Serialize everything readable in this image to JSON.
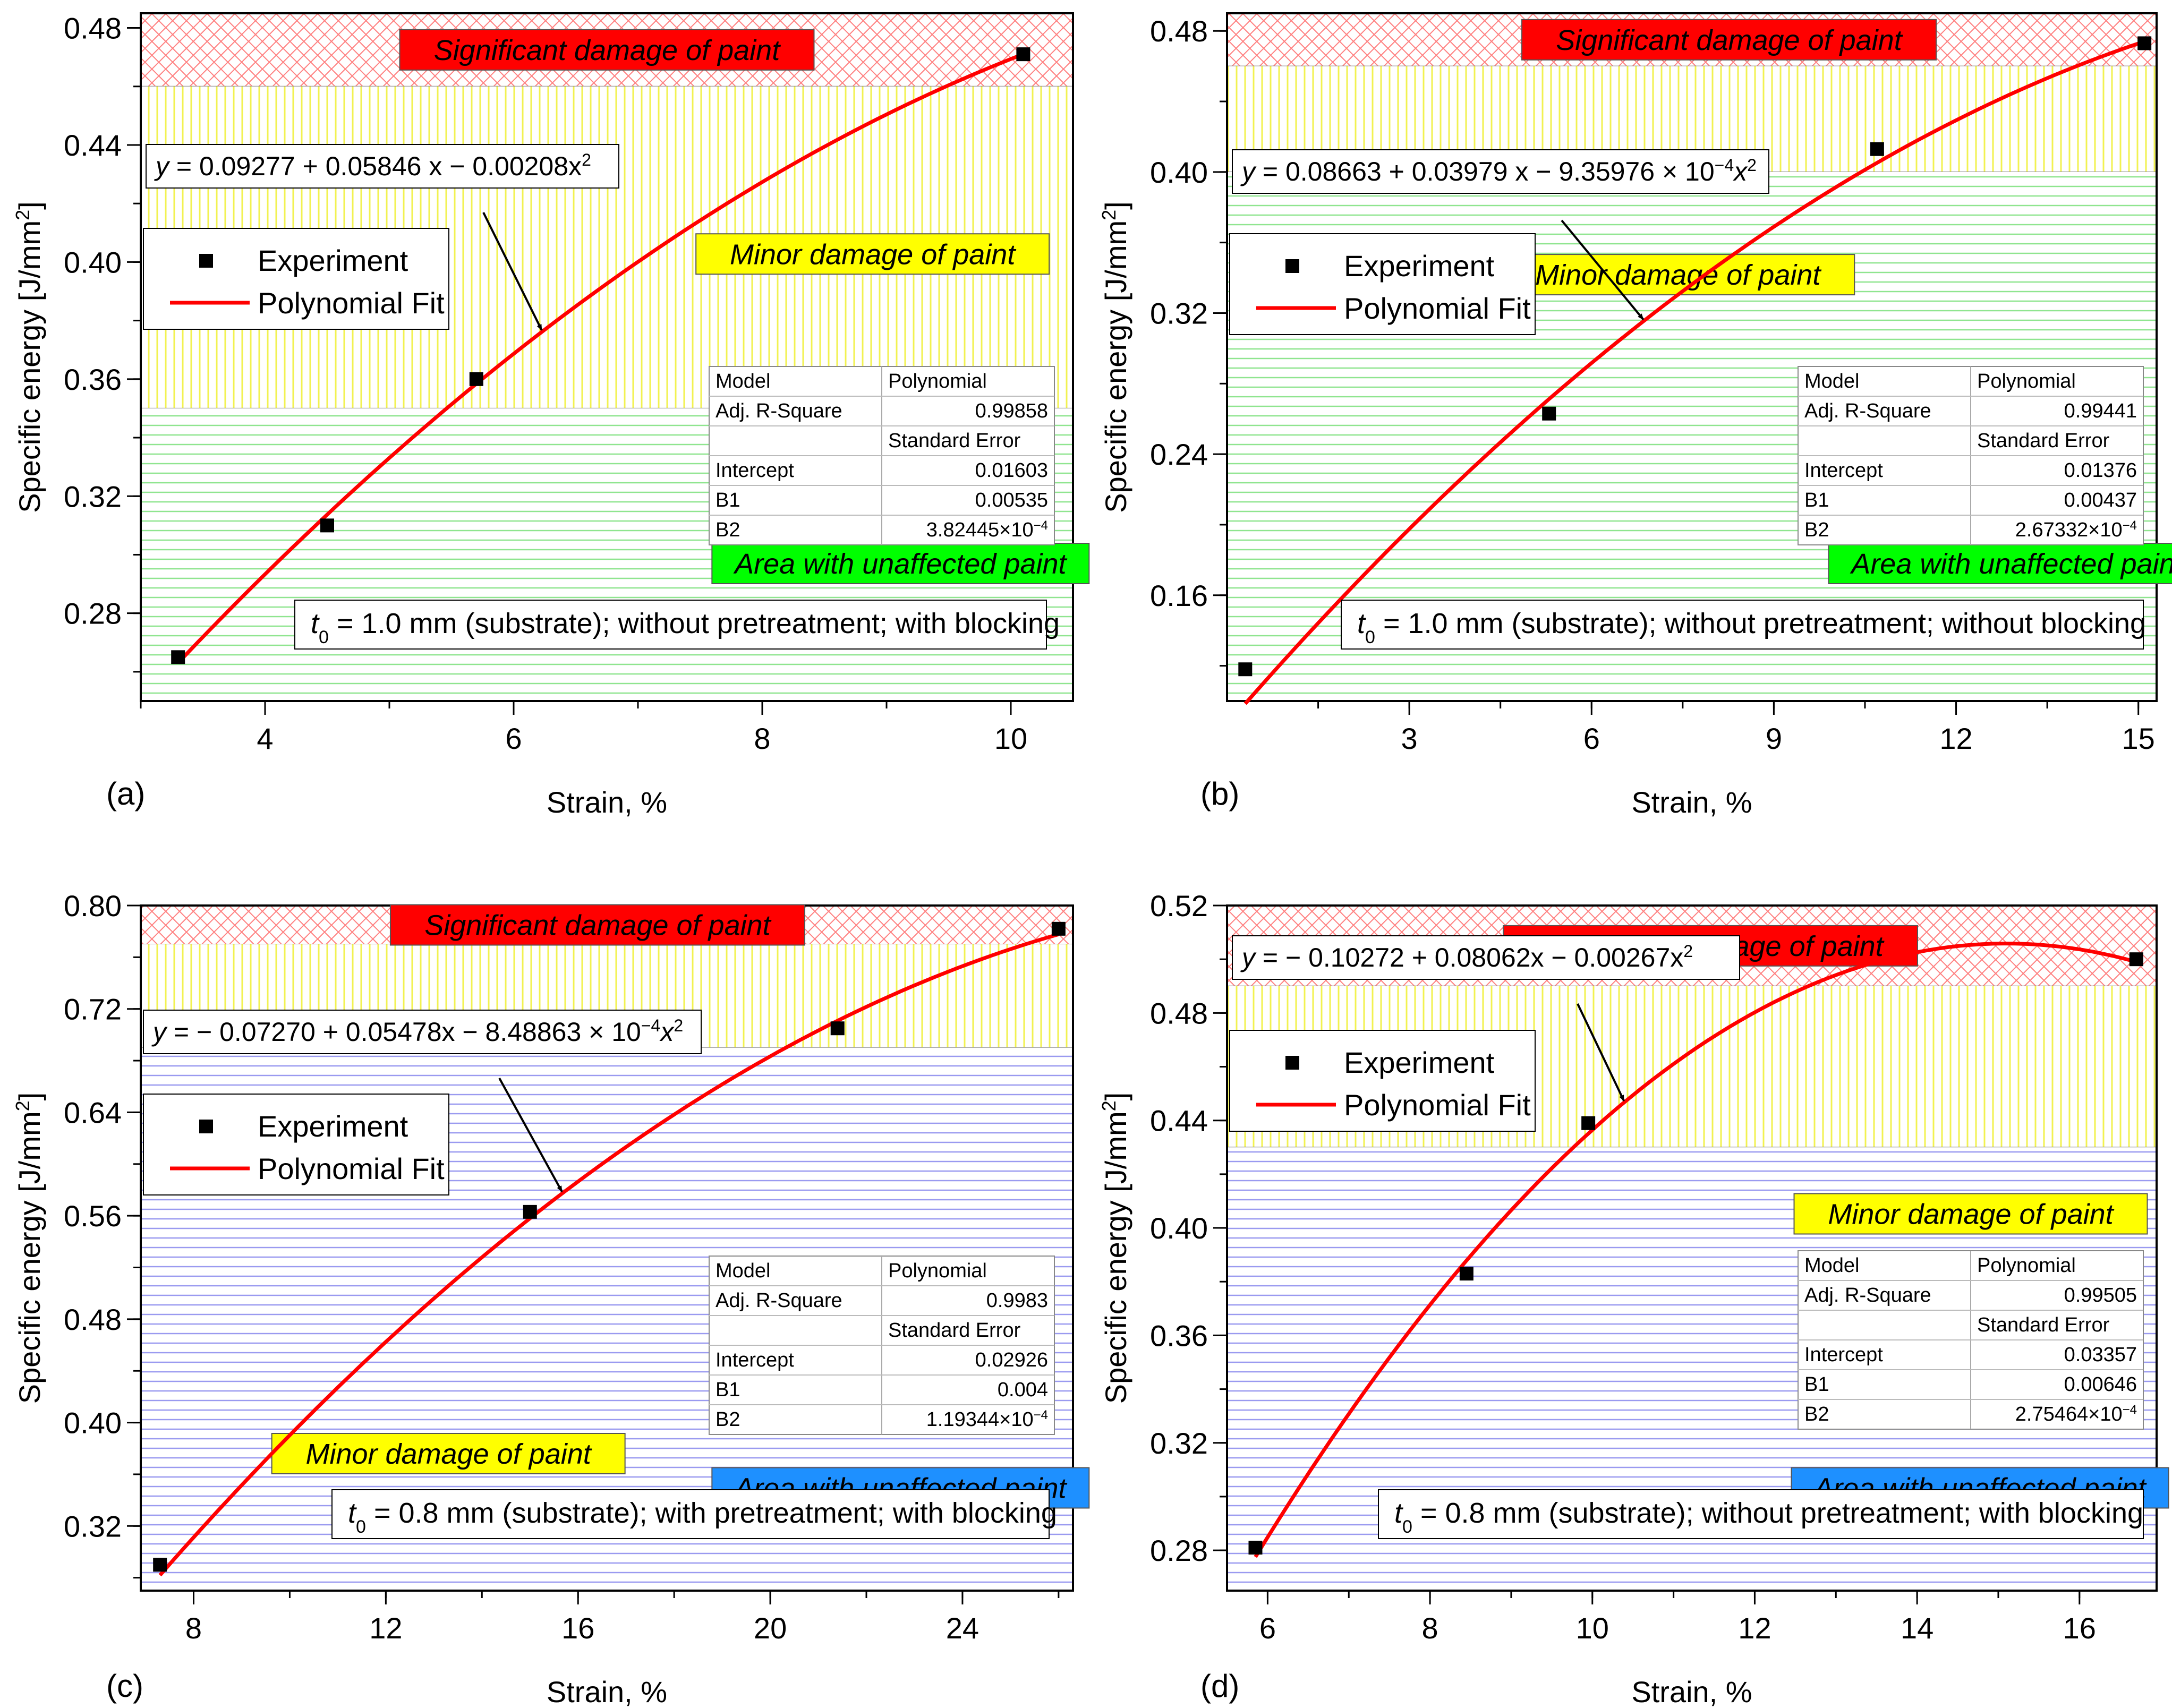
{
  "colors": {
    "significant": "#ff0000",
    "minor": "#ffff00",
    "unaffected_green": "#00ff00",
    "unaffected_blue": "#1e90ff",
    "fit": "#ff0000",
    "marker": "#000000"
  },
  "legend": {
    "experiment": "Experiment",
    "fit": "Polynomial Fit"
  },
  "chart_data": [
    {
      "type": "scatter",
      "panel": "(a)",
      "xlabel": "Strain, %",
      "ylabel": "Specific energy [J/mm²]",
      "ylabel_main": "Specific energy [J/mm",
      "ylabel_sup": "2",
      "ylabel_end": "]",
      "xlim": [
        3.0,
        10.5
      ],
      "ylim": [
        0.25,
        0.485
      ],
      "xticks": [
        4,
        6,
        8,
        10
      ],
      "xtick_labels": [
        "4",
        "6",
        "8",
        "10"
      ],
      "yticks": [
        0.28,
        0.32,
        0.36,
        0.4,
        0.44,
        0.48
      ],
      "ytick_labels": [
        "0.28",
        "0.32",
        "0.36",
        "0.40",
        "0.44",
        "0.48"
      ],
      "zones": [
        {
          "from": 0.46,
          "to": 0.485,
          "type": "significant"
        },
        {
          "from": 0.35,
          "to": 0.46,
          "type": "minor"
        },
        {
          "from": 0.25,
          "to": 0.35,
          "type": "unaffected",
          "color": "green"
        }
      ],
      "zone_labels": {
        "significant": "Significant damage of paint",
        "minor": "Minor damage of paint",
        "unaffected": "Area with unaffected paint"
      },
      "experiment": {
        "x": [
          3.3,
          4.5,
          5.7,
          10.1
        ],
        "y": [
          0.265,
          0.31,
          0.36,
          0.471
        ]
      },
      "fit": {
        "coef": [
          0.09277,
          0.05846,
          -0.00208
        ],
        "xrange": [
          3.3,
          10.1
        ]
      },
      "equation": {
        "lead": "y",
        "body": " = 0.09277 + 0.05846 x − 0.00208x",
        "sup": "2"
      },
      "table": {
        "model_label": "Model",
        "model_value": "Polynomial",
        "r2_label": "Adj. R-Square",
        "r2_value": "0.99858",
        "se_header": "Standard Error",
        "intercept_label": "Intercept",
        "intercept_value": "0.01603",
        "b1_label": "B1",
        "b1_value": "0.00535",
        "b2_label": "B2",
        "b2_value": "3.82445×10",
        "b2_exp": "−4"
      },
      "condition": {
        "t": "t",
        "sub": "0",
        "rest": " = 1.0 mm (substrate); without pretreatment; with blocking"
      }
    },
    {
      "type": "scatter",
      "panel": "(b)",
      "xlabel": "Strain, %",
      "ylabel": "Specific energy [J/mm²]",
      "ylabel_main": "Specific energy [J/mm",
      "ylabel_sup": "2",
      "ylabel_end": "]",
      "xlim": [
        0.0,
        15.3
      ],
      "ylim": [
        0.1,
        0.49
      ],
      "xticks": [
        3,
        6,
        9,
        12,
        15
      ],
      "xtick_labels": [
        "3",
        "6",
        "9",
        "12",
        "15"
      ],
      "yticks": [
        0.16,
        0.24,
        0.32,
        0.4,
        0.48
      ],
      "ytick_labels": [
        "0.16",
        "0.24",
        "0.32",
        "0.40",
        "0.48"
      ],
      "zones": [
        {
          "from": 0.46,
          "to": 0.49,
          "type": "significant"
        },
        {
          "from": 0.4,
          "to": 0.46,
          "type": "minor"
        },
        {
          "from": 0.1,
          "to": 0.4,
          "type": "unaffected",
          "color": "green"
        }
      ],
      "zone_labels": {
        "significant": "Significant damage of paint",
        "minor": "Minor damage of paint",
        "unaffected": "Area with unaffected paint"
      },
      "experiment": {
        "x": [
          0.3,
          5.3,
          10.7,
          15.1
        ],
        "y": [
          0.118,
          0.263,
          0.413,
          0.473
        ]
      },
      "fit": {
        "coef": [
          0.08663,
          0.03979,
          -0.000935976
        ],
        "xrange": [
          0.3,
          15.1
        ]
      },
      "equation": {
        "lead": "y",
        "body": " = 0.08663 + 0.03979 x − 9.35976 × 10",
        "exp": "−4",
        "tail": "x",
        "sup": "2"
      },
      "table": {
        "model_label": "Model",
        "model_value": "Polynomial",
        "r2_label": "Adj. R-Square",
        "r2_value": "0.99441",
        "se_header": "Standard Error",
        "intercept_label": "Intercept",
        "intercept_value": "0.01376",
        "b1_label": "B1",
        "b1_value": "0.00437",
        "b2_label": "B2",
        "b2_value": "2.67332×10",
        "b2_exp": "−4"
      },
      "condition": {
        "t": "t",
        "sub": "0",
        "rest": " = 1.0 mm (substrate); without pretreatment; without blocking"
      }
    },
    {
      "type": "scatter",
      "panel": "(c)",
      "xlabel": "Strain, %",
      "ylabel": "Specific energy [J/mm²]",
      "ylabel_main": "Specific energy [J/mm",
      "ylabel_sup": "2",
      "ylabel_end": "]",
      "xlim": [
        6.9,
        26.3
      ],
      "ylim": [
        0.27,
        0.8
      ],
      "xticks": [
        8,
        12,
        16,
        20,
        24
      ],
      "xtick_labels": [
        "8",
        "12",
        "16",
        "20",
        "24"
      ],
      "yticks": [
        0.32,
        0.4,
        0.48,
        0.56,
        0.64,
        0.72,
        0.8
      ],
      "ytick_labels": [
        "0.32",
        "0.40",
        "0.48",
        "0.56",
        "0.64",
        "0.72",
        "0.80"
      ],
      "zones": [
        {
          "from": 0.77,
          "to": 0.8,
          "type": "significant"
        },
        {
          "from": 0.69,
          "to": 0.77,
          "type": "minor"
        },
        {
          "from": 0.27,
          "to": 0.69,
          "type": "unaffected",
          "color": "blue"
        }
      ],
      "zone_labels": {
        "significant": "Significant damage of paint",
        "minor": "Minor damage of paint",
        "unaffected": "Area with unaffected paint"
      },
      "experiment": {
        "x": [
          7.3,
          15.0,
          21.4,
          26.0
        ],
        "y": [
          0.29,
          0.563,
          0.705,
          0.782
        ]
      },
      "fit": {
        "coef": [
          -0.0727,
          0.05478,
          -0.000848863
        ],
        "xrange": [
          7.3,
          26.0
        ]
      },
      "equation": {
        "lead": "y",
        "body": " = − 0.07270 + 0.05478x − 8.48863 × 10",
        "exp": "−4",
        "tail": "x",
        "sup": "2"
      },
      "table": {
        "model_label": "Model",
        "model_value": "Polynomial",
        "r2_label": "Adj. R-Square",
        "r2_value": "0.9983",
        "se_header": "Standard Error",
        "intercept_label": "Intercept",
        "intercept_value": "0.02926",
        "b1_label": "B1",
        "b1_value": "0.004",
        "b2_label": "B2",
        "b2_value": "1.19344×10",
        "b2_exp": "−4"
      },
      "condition": {
        "t": "t",
        "sub": "0",
        "rest": " = 0.8 mm (substrate); with pretreatment; with blocking"
      }
    },
    {
      "type": "scatter",
      "panel": "(d)",
      "xlabel": "Strain, %",
      "ylabel": "Specific energy [J/mm²]",
      "ylabel_main": "Specific energy [J/mm",
      "ylabel_sup": "2",
      "ylabel_end": "]",
      "xlim": [
        5.5,
        16.95
      ],
      "ylim": [
        0.265,
        0.52
      ],
      "xticks": [
        6,
        8,
        10,
        12,
        14,
        16
      ],
      "xtick_labels": [
        "6",
        "8",
        "10",
        "12",
        "14",
        "16"
      ],
      "yticks": [
        0.28,
        0.32,
        0.36,
        0.4,
        0.44,
        0.48,
        0.52
      ],
      "ytick_labels": [
        "0.28",
        "0.32",
        "0.36",
        "0.40",
        "0.44",
        "0.48",
        "0.52"
      ],
      "zones": [
        {
          "from": 0.49,
          "to": 0.52,
          "type": "significant"
        },
        {
          "from": 0.43,
          "to": 0.49,
          "type": "minor"
        },
        {
          "from": 0.265,
          "to": 0.43,
          "type": "unaffected",
          "color": "blue"
        }
      ],
      "zone_labels": {
        "significant": "Significant damage of paint",
        "minor": "Minor damage of paint",
        "unaffected": "Area with unaffected paint"
      },
      "experiment": {
        "x": [
          5.85,
          8.45,
          9.95,
          16.7
        ],
        "y": [
          0.281,
          0.383,
          0.439,
          0.5
        ]
      },
      "fit": {
        "coef": [
          -0.10272,
          0.08062,
          -0.00267
        ],
        "xrange": [
          5.85,
          16.7
        ]
      },
      "equation": {
        "lead": "y",
        "body": " = − 0.10272 + 0.08062x − 0.00267x",
        "sup": "2"
      },
      "table": {
        "model_label": "Model",
        "model_value": "Polynomial",
        "r2_label": "Adj. R-Square",
        "r2_value": "0.99505",
        "se_header": "Standard Error",
        "intercept_label": "Intercept",
        "intercept_value": "0.03357",
        "b1_label": "B1",
        "b1_value": "0.00646",
        "b2_label": "B2",
        "b2_value": "2.75464×10",
        "b2_exp": "−4"
      },
      "condition": {
        "t": "t",
        "sub": "0",
        "rest": " = 0.8 mm (substrate); without pretreatment; with blocking"
      }
    }
  ]
}
